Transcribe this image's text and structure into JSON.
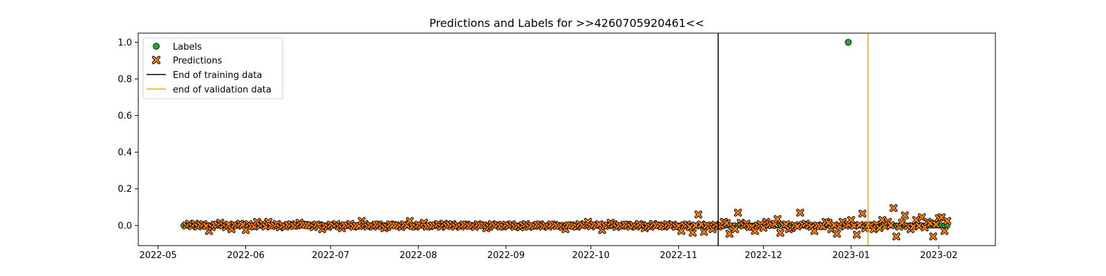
{
  "chart_data": {
    "type": "scatter",
    "title": "Predictions and Labels for >>4260705920461<<",
    "xlabel": "",
    "ylabel": "",
    "x_start": "2022-05-10",
    "x_end": "2023-02-04",
    "xlim": [
      "2022-04-24",
      "2023-02-21"
    ],
    "ylim": [
      -0.11,
      1.05
    ],
    "x_ticks": [
      "2022-05",
      "2022-06",
      "2022-07",
      "2022-08",
      "2022-09",
      "2022-10",
      "2022-11",
      "2022-12",
      "2023-01",
      "2023-02"
    ],
    "y_ticks": [
      "0.0",
      "0.2",
      "0.4",
      "0.6",
      "0.8",
      "1.0"
    ],
    "grid": false,
    "legend_position": "top-left",
    "legend": [
      "Labels",
      "Predictions",
      "End of training data",
      "end of validation data"
    ],
    "colors": {
      "labels": "#2ca02c",
      "predictions": "#ff7f0e",
      "training_line": "#000000",
      "validation_line": "#ffa500"
    },
    "vlines": [
      {
        "name": "End of training data",
        "x": "2022-11-15"
      },
      {
        "name": "end of validation data",
        "x": "2023-01-07"
      }
    ],
    "labels_series": {
      "name": "Labels",
      "default_value": 0.0,
      "nonzero_points": [
        {
          "x": "2022-12-31",
          "y": 1.0
        }
      ]
    },
    "predictions_series": {
      "name": "Predictions",
      "points": [
        [
          "2022-05-14",
          0.01
        ],
        [
          "2022-05-19",
          -0.03
        ],
        [
          "2022-05-23",
          0.015
        ],
        [
          "2022-05-27",
          -0.02
        ],
        [
          "2022-05-30",
          0.01
        ],
        [
          "2022-06-01",
          -0.025
        ],
        [
          "2022-06-05",
          0.02
        ],
        [
          "2022-06-09",
          0.02
        ],
        [
          "2022-06-13",
          -0.01
        ],
        [
          "2022-06-20",
          0.015
        ],
        [
          "2022-06-28",
          -0.02
        ],
        [
          "2022-07-05",
          -0.015
        ],
        [
          "2022-07-12",
          0.025
        ],
        [
          "2022-07-20",
          -0.015
        ],
        [
          "2022-07-29",
          0.025
        ],
        [
          "2022-08-03",
          0.015
        ],
        [
          "2022-08-10",
          0.01
        ],
        [
          "2022-08-25",
          -0.015
        ],
        [
          "2022-09-06",
          -0.01
        ],
        [
          "2022-09-22",
          -0.02
        ],
        [
          "2022-09-30",
          0.02
        ],
        [
          "2022-10-05",
          -0.025
        ],
        [
          "2022-10-08",
          0.015
        ],
        [
          "2022-10-20",
          -0.015
        ],
        [
          "2022-11-02",
          -0.03
        ],
        [
          "2022-11-06",
          -0.04
        ],
        [
          "2022-11-08",
          0.06
        ],
        [
          "2022-11-10",
          -0.035
        ],
        [
          "2022-11-13",
          -0.02
        ],
        [
          "2022-11-17",
          0.02
        ],
        [
          "2022-11-19",
          -0.045
        ],
        [
          "2022-11-21",
          -0.02
        ],
        [
          "2022-11-22",
          0.07
        ],
        [
          "2022-11-25",
          0.01
        ],
        [
          "2022-11-28",
          -0.03
        ],
        [
          "2022-12-02",
          0.02
        ],
        [
          "2022-12-06",
          0.035
        ],
        [
          "2022-12-07",
          -0.04
        ],
        [
          "2022-12-10",
          -0.02
        ],
        [
          "2022-12-14",
          0.07
        ],
        [
          "2022-12-16",
          0.01
        ],
        [
          "2022-12-19",
          -0.03
        ],
        [
          "2022-12-23",
          0.02
        ],
        [
          "2022-12-25",
          -0.02
        ],
        [
          "2022-12-27",
          -0.045
        ],
        [
          "2022-12-29",
          0.02
        ],
        [
          "2023-01-01",
          0.03
        ],
        [
          "2023-01-03",
          -0.05
        ],
        [
          "2023-01-05",
          0.065
        ],
        [
          "2023-01-09",
          -0.02
        ],
        [
          "2023-01-12",
          0.03
        ],
        [
          "2023-01-14",
          0.02
        ],
        [
          "2023-01-16",
          0.095
        ],
        [
          "2023-01-17",
          -0.06
        ],
        [
          "2023-01-20",
          0.055
        ],
        [
          "2023-01-22",
          -0.02
        ],
        [
          "2023-01-24",
          0.03
        ],
        [
          "2023-01-26",
          0.045
        ],
        [
          "2023-01-28",
          0.02
        ],
        [
          "2023-01-30",
          -0.06
        ],
        [
          "2023-02-01",
          0.04
        ],
        [
          "2023-02-02",
          0.045
        ],
        [
          "2023-02-03",
          -0.03
        ],
        [
          "2023-02-04",
          0.025
        ]
      ],
      "default_spread": 0.01
    }
  }
}
